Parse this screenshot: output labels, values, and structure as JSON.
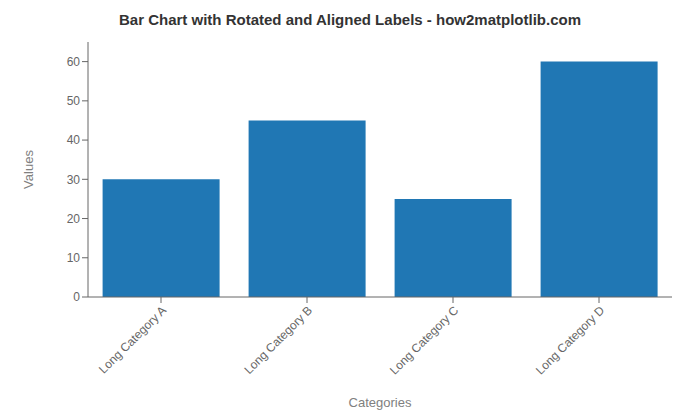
{
  "chart_data": {
    "type": "bar",
    "title": "Bar Chart with Rotated and Aligned Labels - how2matplotlib.com",
    "xlabel": "Categories",
    "ylabel": "Values",
    "categories": [
      "Long Category A",
      "Long Category B",
      "Long Category C",
      "Long Category D"
    ],
    "values": [
      30,
      45,
      25,
      60
    ],
    "color": "#2077b4",
    "ylim": [
      0,
      65
    ],
    "yticks": [
      0,
      10,
      20,
      30,
      40,
      50,
      60
    ],
    "grid": false
  }
}
